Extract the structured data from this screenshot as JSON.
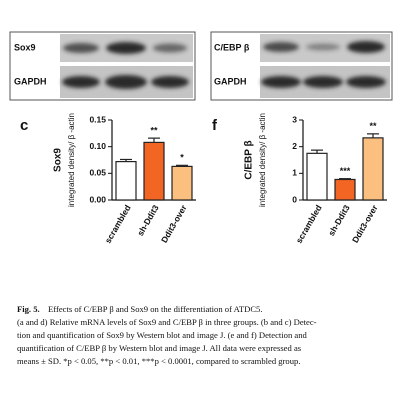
{
  "blots": [
    {
      "rows": [
        "Sox9",
        "GAPDH"
      ]
    },
    {
      "rows": [
        "C/EBP β",
        "GAPDH"
      ]
    }
  ],
  "chart_data": [
    {
      "type": "bar",
      "panel": "c",
      "ylabel_title": "Sox9",
      "ylabel": "integrated density/ β -actin",
      "categories": [
        "scrambled",
        "sh-Ddit3",
        "Ddit3-over"
      ],
      "colors": [
        "#ffffff",
        "#f26522",
        "#fbbf80"
      ],
      "series": [
        {
          "values": [
            0.072,
            0.108,
            0.063
          ],
          "errors": [
            0.004,
            0.008,
            0.002
          ]
        }
      ],
      "annotations": [
        null,
        "**",
        "*"
      ],
      "ylim": [
        0,
        0.15
      ],
      "yticks": [
        {
          "value": 0,
          "label": "0.00"
        },
        {
          "value": 0.05,
          "label": "0.05"
        },
        {
          "value": 0.1,
          "label": "0.10"
        },
        {
          "value": 0.15,
          "label": "0.15"
        }
      ]
    },
    {
      "type": "bar",
      "panel": "f",
      "ylabel_title": "C/EBP β",
      "ylabel": "integrated density/ β -actin",
      "categories": [
        "scrambled",
        "sh-Ddit3",
        "Ddit3-over"
      ],
      "colors": [
        "#ffffff",
        "#f26522",
        "#fbbf80"
      ],
      "series": [
        {
          "values": [
            1.75,
            0.77,
            2.33
          ],
          "errors": [
            0.12,
            0.03,
            0.15
          ]
        }
      ],
      "annotations": [
        null,
        "***",
        "**"
      ],
      "ylim": [
        0,
        3
      ],
      "yticks": [
        0,
        1,
        2,
        3
      ]
    }
  ],
  "caption": {
    "label": "Fig. 5.",
    "lines": [
      "Effects of C/EBP β and Sox9 on the differentiation of ATDC5.",
      "(a and d) Relative mRNA levels of Sox9 and C/EBP β in three groups. (b and c) Detec-",
      "tion and quantification of Sox9 by Western blot and image J. (e and f) Detection and",
      "quantification of C/EBP β by Western blot and image J. All data were expressed as",
      "means ± SD. *p < 0.05, **p < 0.01, ***p < 0.0001, compared to scrambled group."
    ]
  }
}
